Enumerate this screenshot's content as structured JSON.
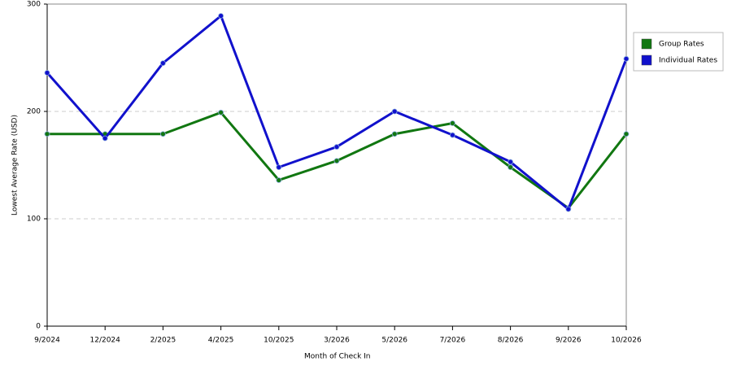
{
  "chart_data": {
    "type": "line",
    "x_label": "Month of Check In",
    "y_label": "Lowest Average Rate (USD)",
    "categories": [
      "9/2024",
      "12/2024",
      "2/2025",
      "4/2025",
      "10/2025",
      "3/2026",
      "5/2026",
      "7/2026",
      "8/2026",
      "9/2026",
      "10/2026"
    ],
    "series": [
      {
        "name": "Group Rates",
        "color": "#117711",
        "values": [
          179,
          179,
          179,
          199,
          136,
          154,
          179,
          189,
          148,
          110,
          179
        ]
      },
      {
        "name": "Individual Rates",
        "color": "#1111cc",
        "values": [
          236,
          175,
          245,
          289,
          148,
          167,
          200,
          178,
          153,
          109,
          249
        ]
      }
    ],
    "ylim": [
      0,
      300
    ],
    "yticks": [
      0,
      100,
      200,
      300
    ],
    "grid": true,
    "legend": "right"
  }
}
